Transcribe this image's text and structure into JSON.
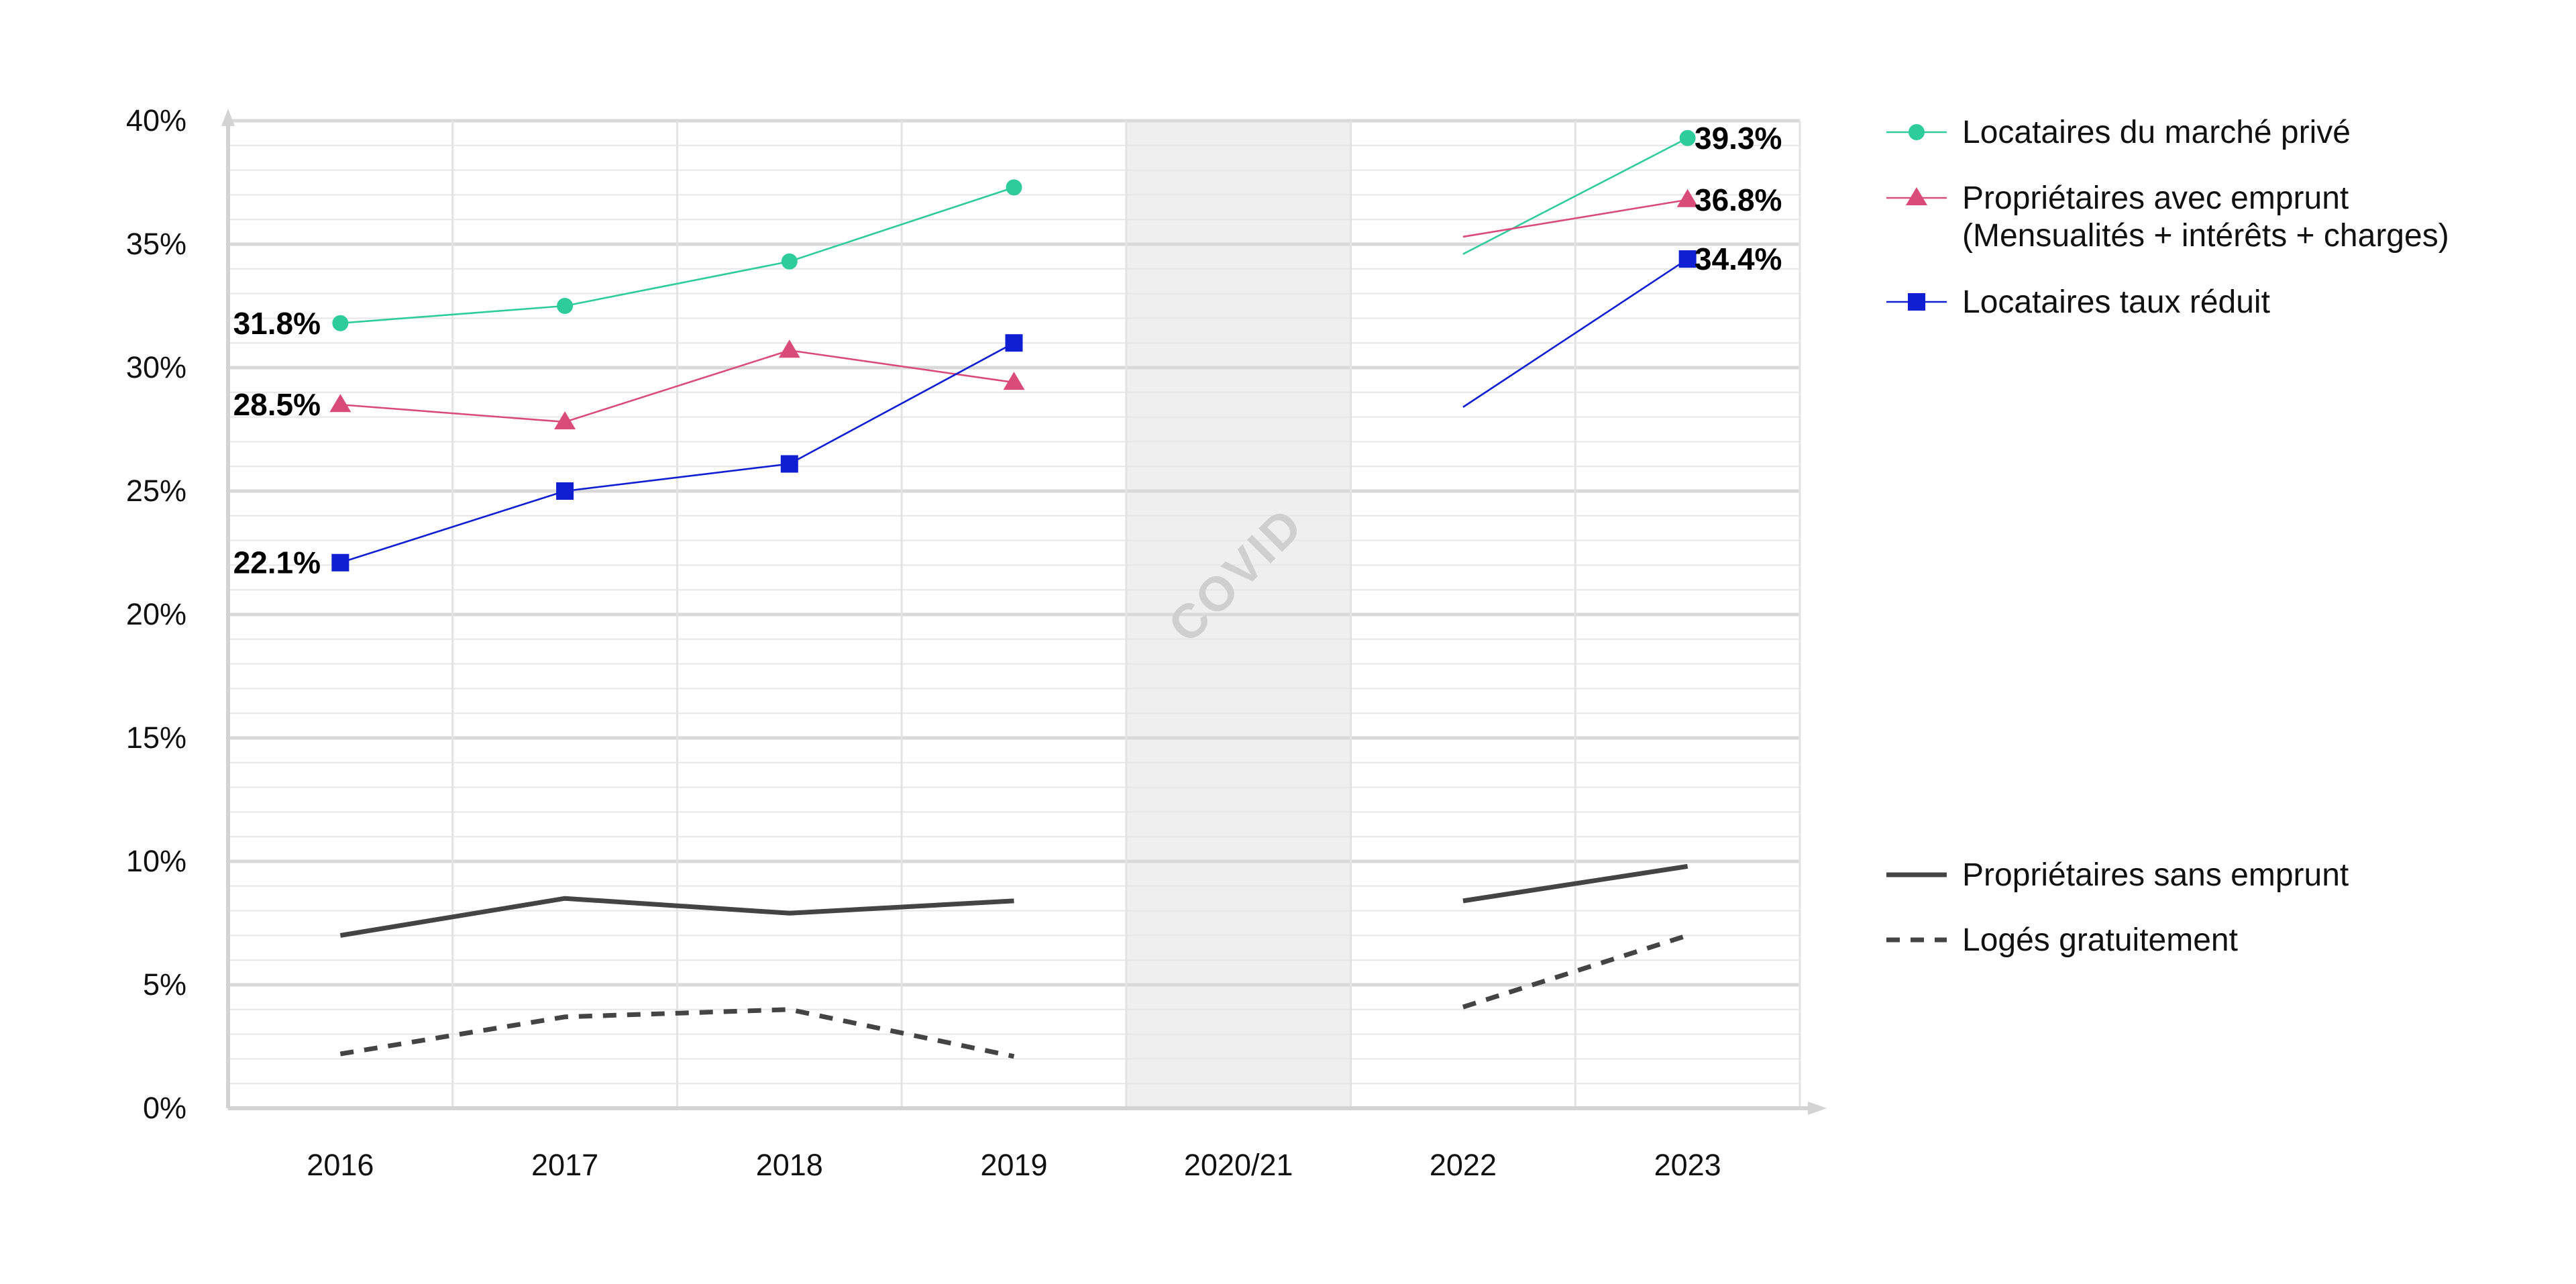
{
  "chart_data": {
    "type": "line",
    "title": "",
    "xlabel": "",
    "ylabel": "",
    "categories": [
      "2016",
      "2017",
      "2018",
      "2019",
      "2020/21",
      "2022",
      "2023"
    ],
    "y_ticks": [
      "0%",
      "5%",
      "10%",
      "15%",
      "20%",
      "25%",
      "30%",
      "35%",
      "40%"
    ],
    "ylim": [
      0,
      40
    ],
    "grid": true,
    "shaded_band": {
      "category": "2020/21",
      "label": "COVID",
      "color": "#efefef"
    },
    "series": [
      {
        "key": "marche_prive",
        "name": "Locataires du marché privé",
        "color": "#2ecc9a",
        "marker": "circle",
        "dash": false,
        "legend_line2": "",
        "segments": [
          {
            "x": [
              "2016",
              "2017",
              "2018",
              "2019"
            ],
            "values": [
              31.8,
              32.5,
              34.3,
              37.3
            ]
          },
          {
            "x": [
              "2022",
              "2023"
            ],
            "values": [
              34.6,
              39.3
            ],
            "markers": [
              false,
              true
            ]
          }
        ],
        "start_label": "31.8%",
        "end_label": "39.3%"
      },
      {
        "key": "proprio_emprunt",
        "name": "Propriétaires avec emprunt",
        "legend_line2": "(Mensualités + intérêts + charges)",
        "color": "#d94c7a",
        "marker": "triangle",
        "dash": false,
        "segments": [
          {
            "x": [
              "2016",
              "2017",
              "2018",
              "2019"
            ],
            "values": [
              28.5,
              27.8,
              30.7,
              29.4
            ]
          },
          {
            "x": [
              "2022",
              "2023"
            ],
            "values": [
              35.3,
              36.8
            ],
            "markers": [
              false,
              true
            ]
          }
        ],
        "start_label": "28.5%",
        "end_label": "36.8%"
      },
      {
        "key": "taux_reduit",
        "name": "Locataires taux réduit",
        "legend_line2": "",
        "color": "#0f1fd1",
        "marker": "square",
        "dash": false,
        "segments": [
          {
            "x": [
              "2016",
              "2017",
              "2018",
              "2019"
            ],
            "values": [
              22.1,
              25.0,
              26.1,
              31.0
            ]
          },
          {
            "x": [
              "2022",
              "2023"
            ],
            "values": [
              28.4,
              34.4
            ],
            "markers": [
              false,
              true
            ]
          }
        ],
        "start_label": "22.1%",
        "end_label": "34.4%"
      },
      {
        "key": "sans_emprunt",
        "name": "Propriétaires sans emprunt",
        "legend_line2": "",
        "color": "#444444",
        "marker": "none",
        "dash": false,
        "segments": [
          {
            "x": [
              "2016",
              "2017",
              "2018",
              "2019"
            ],
            "values": [
              7.0,
              8.5,
              7.9,
              8.4
            ]
          },
          {
            "x": [
              "2022",
              "2023"
            ],
            "values": [
              8.4,
              9.8
            ]
          }
        ],
        "start_label": "",
        "end_label": ""
      },
      {
        "key": "loges_gratuit",
        "name": "Logés gratuitement",
        "legend_line2": "",
        "color": "#444444",
        "marker": "none",
        "dash": true,
        "segments": [
          {
            "x": [
              "2016",
              "2017",
              "2018",
              "2019"
            ],
            "values": [
              2.2,
              3.7,
              4.0,
              2.1
            ]
          },
          {
            "x": [
              "2022",
              "2023"
            ],
            "values": [
              4.1,
              7.0
            ]
          }
        ],
        "start_label": "",
        "end_label": ""
      }
    ]
  }
}
